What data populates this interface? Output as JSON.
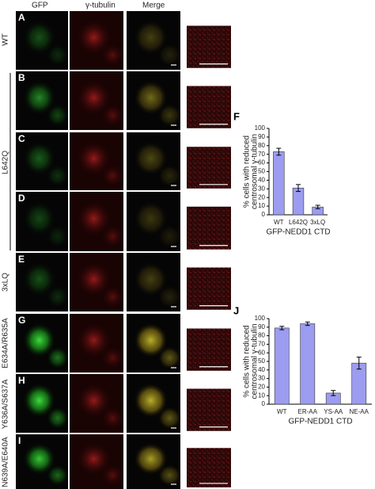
{
  "figure": {
    "columns": [
      "GFP",
      "γ-tubulin",
      "Merge"
    ],
    "row_labels": [
      "WT",
      "L642Q",
      "3xLQ",
      "E634A/R635A",
      "Y636A/S637A",
      "N639A/E640A"
    ],
    "panel_letters": [
      "A",
      "B",
      "C",
      "D",
      "E",
      "G",
      "H",
      "I"
    ]
  },
  "chart_data": [
    {
      "type": "bar",
      "label": "F",
      "ylabel": [
        "% cells with reduced",
        "centrosomal γ-tubulin"
      ],
      "xlabel": "GFP-NEDD1 CTD",
      "categories": [
        "WT",
        "L642Q",
        "3xLQ"
      ],
      "values": [
        73,
        31,
        9
      ],
      "errors": [
        4,
        4,
        2
      ],
      "color": "#9c9cf0",
      "ylim": [
        0,
        100
      ],
      "yticks": [
        0,
        10,
        20,
        30,
        40,
        50,
        60,
        70,
        80,
        90,
        100
      ]
    },
    {
      "type": "bar",
      "label": "J",
      "ylabel": [
        "% cells with reduced",
        "centrosomal γ-tubulin"
      ],
      "xlabel": "GFP-NEDD1 CTD",
      "categories": [
        "WT",
        "ER-AA",
        "YS-AA",
        "NE-AA"
      ],
      "values": [
        89,
        94,
        13,
        48
      ],
      "errors": [
        2,
        2,
        3,
        7
      ],
      "color": "#9c9cf0",
      "ylim": [
        0,
        100
      ],
      "yticks": [
        0,
        10,
        20,
        30,
        40,
        50,
        60,
        70,
        80,
        90,
        100
      ]
    }
  ]
}
